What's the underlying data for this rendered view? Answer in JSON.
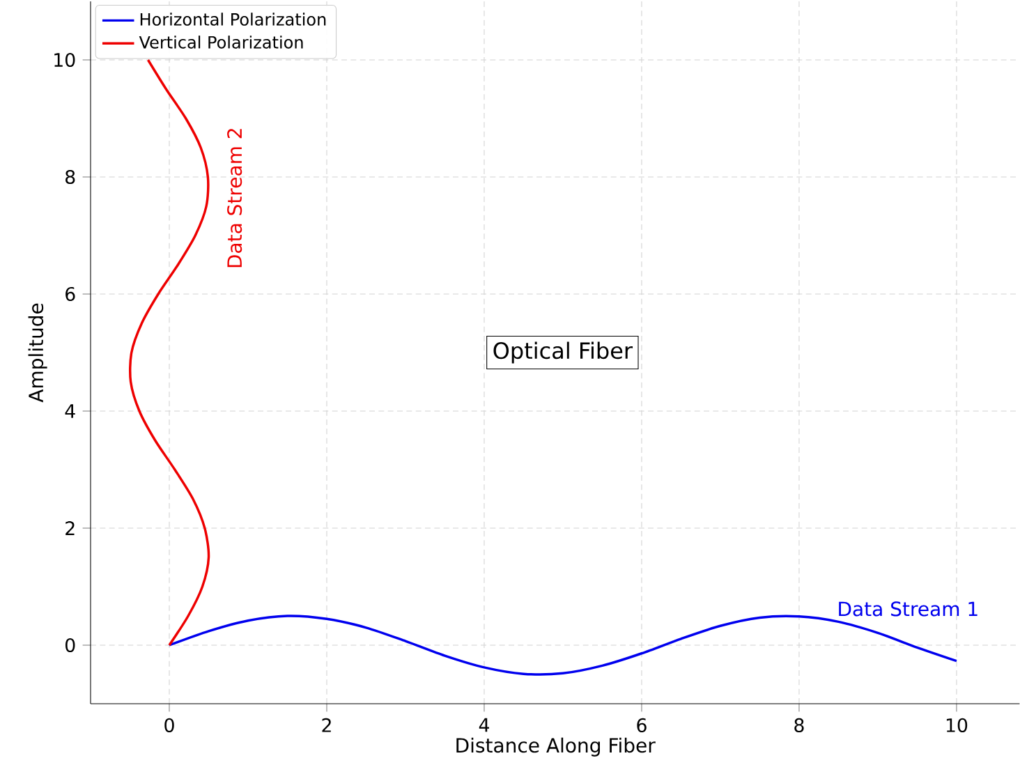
{
  "chart_data": {
    "type": "line",
    "xlabel": "Distance Along Fiber",
    "ylabel": "Amplitude",
    "series": [
      {
        "name": "Horizontal Polarization",
        "color": "#0000ee",
        "x": [
          0,
          0.5,
          1,
          1.5,
          2,
          2.5,
          3,
          3.5,
          4,
          4.5,
          5,
          5.5,
          6,
          6.5,
          7,
          7.5,
          8,
          8.5,
          9,
          9.5,
          10
        ],
        "values": [
          0,
          0.24,
          0.42,
          0.5,
          0.45,
          0.3,
          0.07,
          -0.18,
          -0.38,
          -0.49,
          -0.48,
          -0.35,
          -0.14,
          0.11,
          0.33,
          0.47,
          0.49,
          0.4,
          0.21,
          -0.04,
          -0.27
        ]
      },
      {
        "name": "Vertical Polarization",
        "color": "#ee0000",
        "x": [
          0,
          0.24,
          0.42,
          0.5,
          0.45,
          0.3,
          0.07,
          -0.18,
          -0.38,
          -0.49,
          -0.48,
          -0.35,
          -0.14,
          0.11,
          0.33,
          0.47,
          0.49,
          0.4,
          0.21,
          -0.04,
          -0.27
        ],
        "values": [
          0,
          0.5,
          1,
          1.5,
          2,
          2.5,
          3,
          3.5,
          4,
          4.5,
          5,
          5.5,
          6,
          6.5,
          7,
          7.5,
          8,
          8.5,
          9,
          9.5,
          10
        ]
      }
    ],
    "annotations": [
      "Optical Fiber",
      "Data Stream 1",
      "Data Stream 2"
    ],
    "xlim": [
      -1,
      10.8
    ],
    "ylim": [
      -1,
      11
    ],
    "xticks": [
      0,
      2,
      4,
      6,
      8,
      10
    ],
    "yticks": [
      0,
      2,
      4,
      6,
      8,
      10
    ],
    "grid": true,
    "legend": "top left"
  }
}
